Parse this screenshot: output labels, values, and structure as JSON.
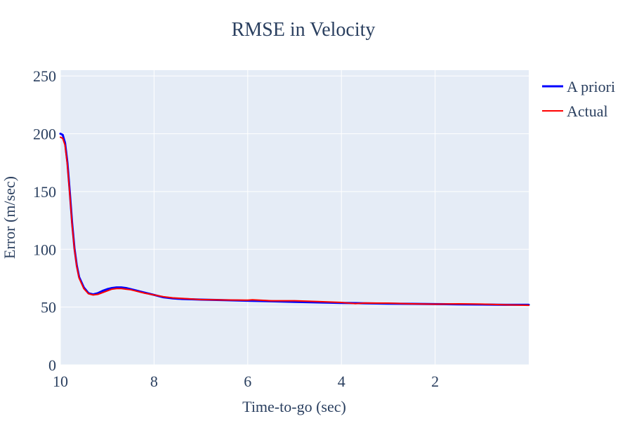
{
  "chart_data": {
    "type": "line",
    "title": "RMSE in Velocity",
    "xlabel": "Time-to-go (sec)",
    "ylabel": "Error (m/sec)",
    "xlim": [
      10,
      0
    ],
    "ylim": [
      0,
      255
    ],
    "x_reversed": true,
    "xticks": [
      10,
      8,
      6,
      4,
      2
    ],
    "yticks": [
      0,
      50,
      100,
      150,
      200,
      250
    ],
    "grid": true,
    "plot_background": "#e5ecf6",
    "legend_position": "top-right, outside plot",
    "series": [
      {
        "name": "A priori",
        "color": "#0000ff",
        "x": [
          10,
          9.95,
          9.9,
          9.85,
          9.8,
          9.75,
          9.7,
          9.65,
          9.6,
          9.5,
          9.4,
          9.3,
          9.2,
          9.1,
          9.0,
          8.9,
          8.8,
          8.7,
          8.6,
          8.5,
          8.4,
          8.3,
          8.2,
          8.0,
          7.8,
          7.6,
          7.4,
          7.2,
          7.0,
          6.5,
          6.0,
          5.5,
          5.0,
          4.5,
          4.0,
          3.5,
          3.0,
          2.5,
          2.0,
          1.5,
          1.0,
          0.5,
          0.0
        ],
        "y": [
          200,
          199,
          192,
          175,
          150,
          123,
          101,
          86,
          76,
          67,
          62,
          61,
          62,
          64,
          65.5,
          66.5,
          67,
          67,
          66.5,
          65.5,
          64.5,
          63.5,
          62.5,
          60.5,
          58.5,
          57.5,
          57,
          56.8,
          56.5,
          56,
          55.5,
          55,
          54.5,
          54,
          53.6,
          53.3,
          53,
          52.8,
          52.6,
          52.4,
          52.2,
          52,
          52
        ]
      },
      {
        "name": "Actual",
        "color": "#ff0000",
        "x": [
          10,
          9.95,
          9.9,
          9.85,
          9.8,
          9.75,
          9.7,
          9.65,
          9.6,
          9.5,
          9.4,
          9.3,
          9.2,
          9.1,
          9.0,
          8.9,
          8.8,
          8.7,
          8.6,
          8.5,
          8.4,
          8.3,
          8.2,
          8.0,
          7.8,
          7.6,
          7.4,
          7.2,
          7.0,
          6.5,
          6.0,
          5.9,
          5.5,
          5.0,
          4.5,
          4.0,
          3.7,
          3.5,
          3.0,
          2.5,
          2.0,
          1.5,
          1.0,
          0.5,
          0.0
        ],
        "y": [
          197,
          196,
          190,
          173,
          148,
          121,
          100,
          85,
          75,
          66,
          61.5,
          60.5,
          61,
          62.5,
          64,
          65.5,
          66,
          66,
          65.5,
          65,
          64,
          63,
          62,
          60.5,
          59,
          58,
          57.5,
          57,
          56.5,
          56.2,
          56,
          56.3,
          55.5,
          55.5,
          54.8,
          54,
          53,
          53.5,
          53.4,
          52.8,
          52.5,
          52.8,
          52.6,
          52,
          51.5
        ]
      }
    ]
  }
}
